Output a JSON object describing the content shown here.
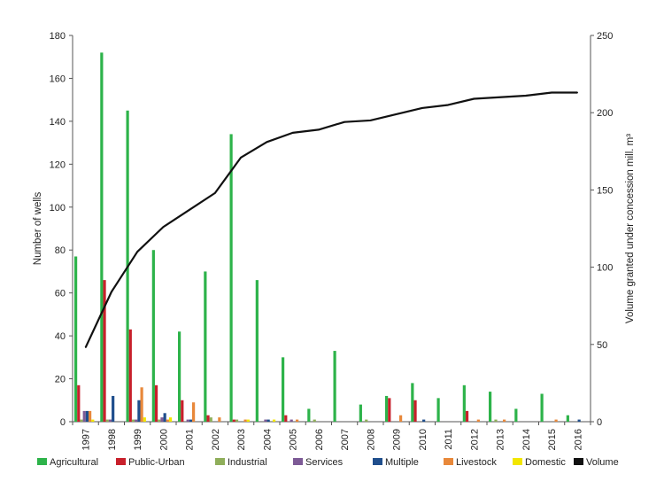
{
  "chart_data": {
    "type": "bar",
    "categories": [
      "1997",
      "1998",
      "1999",
      "2000",
      "2001",
      "2002",
      "2003",
      "2004",
      "2005",
      "2006",
      "2007",
      "2008",
      "2009",
      "2010",
      "2011",
      "2012",
      "2013",
      "2014",
      "2015",
      "2016"
    ],
    "ylabel": "Number of wells",
    "y2label": "Volume granted under concession mill. m³",
    "ylim": [
      0,
      180
    ],
    "y2lim": [
      0,
      250
    ],
    "yticks": [
      0,
      20,
      40,
      60,
      80,
      100,
      120,
      140,
      160,
      180
    ],
    "y2ticks": [
      0,
      50,
      100,
      150,
      200,
      250
    ],
    "grid": false,
    "legend_position": "bottom",
    "series": [
      {
        "name": "Agricultural",
        "color": "#2db34a",
        "values": [
          77,
          172,
          145,
          80,
          42,
          70,
          134,
          66,
          30,
          6,
          33,
          8,
          12,
          18,
          11,
          17,
          14,
          6,
          13,
          3
        ]
      },
      {
        "name": "Public-Urban",
        "color": "#c8202b",
        "values": [
          17,
          66,
          43,
          17,
          10,
          3,
          1,
          0,
          3,
          0,
          0,
          0,
          11,
          10,
          0,
          5,
          0,
          0,
          0,
          0
        ]
      },
      {
        "name": "Industrial",
        "color": "#8fae5a",
        "values": [
          1,
          1,
          1,
          1,
          0,
          2,
          1,
          0,
          0,
          1,
          0,
          1,
          0,
          0,
          0,
          0,
          1,
          0,
          0,
          0
        ]
      },
      {
        "name": "Services",
        "color": "#7d5a96",
        "values": [
          5,
          1,
          1,
          2,
          1,
          0,
          0,
          1,
          1,
          0,
          0,
          0,
          0,
          0,
          0,
          0,
          0,
          0,
          0,
          0
        ]
      },
      {
        "name": "Multiple",
        "color": "#1f4e8c",
        "values": [
          5,
          12,
          10,
          4,
          1,
          0,
          0,
          1,
          0,
          0,
          0,
          0,
          0,
          1,
          0,
          0,
          0,
          0,
          0,
          1
        ]
      },
      {
        "name": "Livestock",
        "color": "#e8883a",
        "values": [
          5,
          0,
          16,
          1,
          9,
          2,
          1,
          0,
          1,
          0,
          0,
          0,
          3,
          0,
          0,
          1,
          1,
          0,
          1,
          0
        ]
      },
      {
        "name": "Domestic",
        "color": "#f2e600",
        "values": [
          1,
          0,
          2,
          2,
          0,
          0,
          1,
          1,
          0,
          0,
          0,
          0,
          0,
          0,
          0,
          0,
          0,
          0,
          0,
          0
        ]
      },
      {
        "name": "Volume",
        "color": "#111111",
        "type": "line",
        "axis": "right",
        "values": [
          48,
          84,
          110,
          126,
          137,
          148,
          171,
          181,
          187,
          189,
          194,
          195,
          199,
          203,
          205,
          209,
          210,
          211,
          213,
          213
        ]
      }
    ]
  }
}
